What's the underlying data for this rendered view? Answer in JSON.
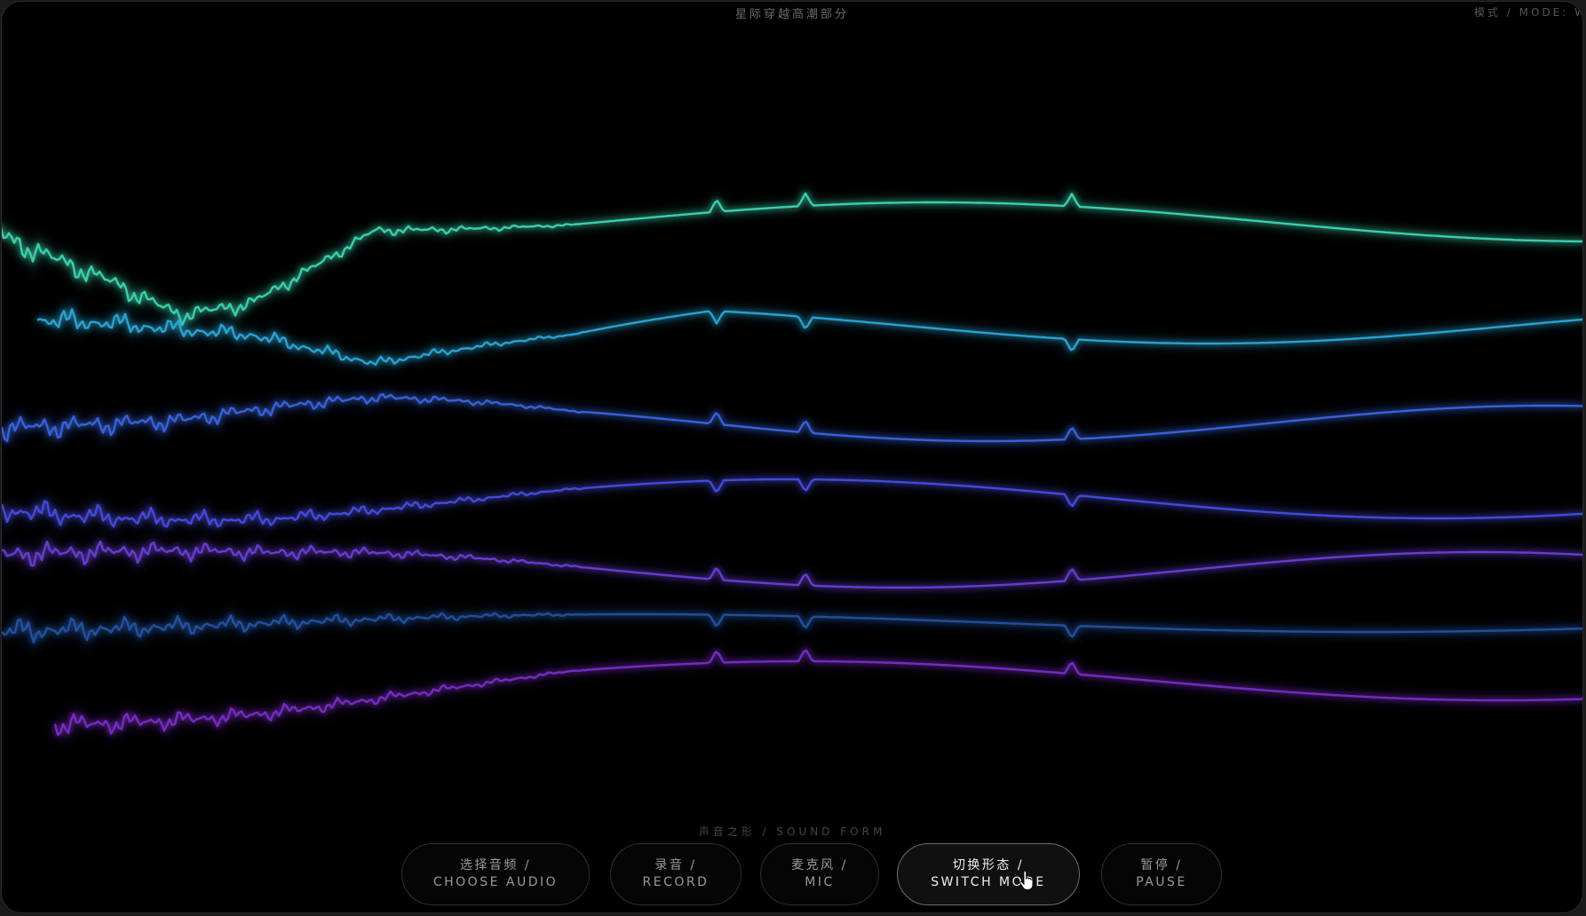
{
  "header": {
    "track_title": "星际穿越高潮部分",
    "mode_label": "模式 / MODE: W"
  },
  "brand": "声音之形 / SOUND FORM",
  "controls": [
    {
      "zh": "选择音频 /",
      "en": "CHOOSE AUDIO",
      "active": false
    },
    {
      "zh": "录音 /",
      "en": "RECORD",
      "active": false
    },
    {
      "zh": "麦克风 /",
      "en": "MIC",
      "active": false
    },
    {
      "zh": "切换形态 /",
      "en": "SWITCH MODE",
      "active": true
    },
    {
      "zh": "暂停 /",
      "en": "PAUSE",
      "active": false
    }
  ],
  "visualizer": {
    "lines": [
      {
        "color": "#3fd7b3"
      },
      {
        "color": "#2fa8d8"
      },
      {
        "color": "#3b66e0"
      },
      {
        "color": "#4a4ee0"
      },
      {
        "color": "#6a3fd6"
      },
      {
        "color": "#2f6bd0"
      },
      {
        "color": "#7a2fc8"
      }
    ]
  },
  "icons": {
    "cursor": "hand-pointer-icon"
  }
}
